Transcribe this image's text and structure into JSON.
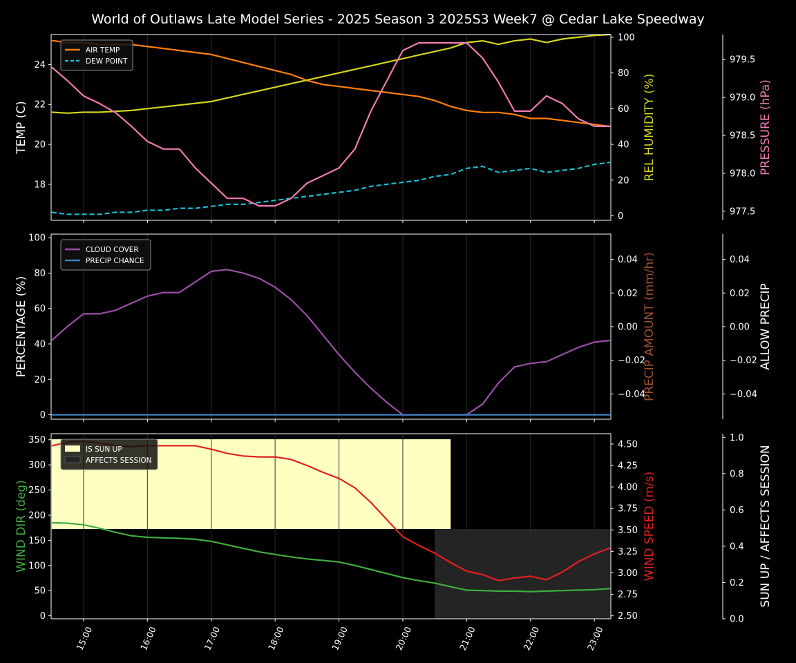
{
  "title": "World of Outlaws Late Model Series - 2025 Season 3 2025S3 Week7 @ Cedar Lake Speedway",
  "colors": {
    "background": "#000000",
    "axis": "#ffffff",
    "air_temp": "#ff7f0e",
    "dew_point": "#17becf",
    "humidity": "#d4d41c",
    "pressure": "#f07ab4",
    "cloud": "#9b4ea6",
    "precip_chance": "#3b7fc4",
    "precip_amount_label": "#a0522d",
    "wind_dir": "#3fae3f",
    "wind_speed": "#e0201e",
    "sun_up": "#ffffc2",
    "affects_session": "#242424",
    "grid": "#2a2a2a"
  },
  "chart_data": [
    {
      "type": "line",
      "panel": "top",
      "x": [
        "14:30",
        "14:45",
        "15:00",
        "15:15",
        "15:30",
        "15:45",
        "16:00",
        "16:15",
        "16:30",
        "16:45",
        "17:00",
        "17:15",
        "17:30",
        "17:45",
        "18:00",
        "18:15",
        "18:30",
        "18:45",
        "19:00",
        "19:15",
        "19:30",
        "19:45",
        "20:00",
        "20:15",
        "20:30",
        "20:45",
        "21:00",
        "21:15",
        "21:30",
        "21:45",
        "22:00",
        "22:15",
        "22:30",
        "22:45",
        "23:00",
        "23:15"
      ],
      "xticks": [
        "15:00",
        "16:00",
        "17:00",
        "18:00",
        "19:00",
        "20:00",
        "21:00",
        "22:00",
        "23:00"
      ],
      "axes": {
        "left": {
          "label": "TEMP (C)",
          "ylim": [
            16.2,
            25.5
          ],
          "ticks": [
            18,
            20,
            22,
            24
          ]
        },
        "right1": {
          "label": "REL HUMIDITY (%)",
          "ylim": [
            -2.5,
            101.5
          ],
          "ticks": [
            0,
            20,
            40,
            60,
            80,
            100
          ]
        },
        "right2": {
          "label": "PRESSURE (hPa)",
          "ylim": [
            977.38,
            979.83
          ],
          "ticks": [
            977.5,
            978.0,
            978.5,
            979.0,
            979.5
          ],
          "tick_labels": [
            "977.5",
            "978.0",
            "978.5",
            "979.0",
            "979.5"
          ]
        }
      },
      "legend": {
        "placement": "top-left",
        "entries": [
          "AIR TEMP",
          "DEW POINT"
        ]
      },
      "series": [
        {
          "name": "AIR TEMP",
          "axis": "left",
          "style": "solid",
          "values": [
            25.2,
            25.1,
            25.1,
            25.0,
            25.0,
            25.0,
            24.9,
            24.8,
            24.7,
            24.6,
            24.5,
            24.3,
            24.1,
            23.9,
            23.7,
            23.5,
            23.2,
            23.0,
            22.9,
            22.8,
            22.7,
            22.6,
            22.5,
            22.4,
            22.2,
            21.9,
            21.7,
            21.6,
            21.6,
            21.5,
            21.3,
            21.3,
            21.2,
            21.1,
            21.0,
            20.9
          ]
        },
        {
          "name": "DEW POINT",
          "axis": "left",
          "style": "dashed",
          "values": [
            16.6,
            16.5,
            16.5,
            16.5,
            16.6,
            16.6,
            16.7,
            16.7,
            16.8,
            16.8,
            16.9,
            17.0,
            17.0,
            17.1,
            17.2,
            17.3,
            17.4,
            17.5,
            17.6,
            17.7,
            17.9,
            18.0,
            18.1,
            18.2,
            18.4,
            18.5,
            18.8,
            18.9,
            18.6,
            18.7,
            18.8,
            18.6,
            18.7,
            18.8,
            19.0,
            19.1
          ]
        },
        {
          "name": "REL HUMIDITY",
          "axis": "right1",
          "style": "solid",
          "values": [
            58,
            57.5,
            58,
            58,
            58.5,
            59,
            60,
            61,
            62,
            63,
            64,
            66,
            68,
            70,
            72,
            74,
            76,
            78,
            80,
            82,
            84,
            86,
            88,
            90,
            92,
            94,
            97,
            98,
            96,
            98,
            99,
            97,
            99,
            100,
            101,
            101.5
          ]
        },
        {
          "name": "PRESSURE",
          "axis": "right2",
          "style": "solid",
          "values": [
            979.4,
            979.22,
            979.02,
            978.92,
            978.8,
            978.62,
            978.42,
            978.32,
            978.32,
            978.07,
            977.87,
            977.67,
            977.67,
            977.57,
            977.57,
            977.67,
            977.87,
            977.97,
            978.07,
            978.32,
            978.82,
            979.22,
            979.62,
            979.72,
            979.72,
            979.72,
            979.72,
            979.52,
            979.2,
            978.82,
            978.82,
            979.02,
            978.92,
            978.72,
            978.62,
            978.62
          ]
        }
      ]
    },
    {
      "type": "line",
      "panel": "middle",
      "axes": {
        "left": {
          "label": "PERCENTAGE (%)",
          "ylim": [
            -2.5,
            102
          ],
          "ticks": [
            0,
            20,
            40,
            60,
            80,
            100
          ]
        },
        "right1": {
          "label": "PRECIP AMOUNT (mm/hr)",
          "ylim": [
            -0.055,
            0.055
          ],
          "ticks": [
            -0.04,
            -0.02,
            0.0,
            0.02,
            0.04
          ],
          "tick_labels": [
            "−0.04",
            "−0.02",
            "0.00",
            "0.02",
            "0.04"
          ]
        },
        "right2": {
          "label": "ALLOW PRECIP",
          "ylim": [
            -0.055,
            0.055
          ],
          "ticks": [
            -0.04,
            -0.02,
            0.0,
            0.02,
            0.04
          ],
          "tick_labels": [
            "−0.04",
            "−0.02",
            "0.00",
            "0.02",
            "0.04"
          ]
        }
      },
      "legend": {
        "placement": "top-left",
        "entries": [
          "CLOUD COVER",
          "PRECIP CHANCE"
        ]
      },
      "series": [
        {
          "name": "CLOUD COVER",
          "axis": "left",
          "values": [
            42,
            50,
            57,
            57,
            59,
            63,
            67,
            69,
            69,
            75,
            81,
            82,
            80,
            77,
            72,
            65,
            56,
            45,
            34,
            24,
            15,
            7,
            0,
            0,
            0,
            0,
            0,
            6,
            18,
            27,
            29,
            30,
            34,
            38,
            41,
            42
          ]
        },
        {
          "name": "PRECIP CHANCE",
          "axis": "left",
          "values": [
            0,
            0,
            0,
            0,
            0,
            0,
            0,
            0,
            0,
            0,
            0,
            0,
            0,
            0,
            0,
            0,
            0,
            0,
            0,
            0,
            0,
            0,
            0,
            0,
            0,
            0,
            0,
            0,
            0,
            0,
            0,
            0,
            0,
            0,
            0,
            0
          ]
        }
      ]
    },
    {
      "type": "line",
      "panel": "bottom",
      "axes": {
        "left": {
          "label": "WIND DIR (deg)",
          "ylim": [
            -6,
            362
          ],
          "ticks": [
            0,
            50,
            100,
            150,
            200,
            250,
            300,
            350
          ]
        },
        "right1": {
          "label": "WIND SPEED (m/s)",
          "ylim": [
            2.465,
            4.62
          ],
          "ticks": [
            2.5,
            2.75,
            3.0,
            3.25,
            3.5,
            3.75,
            4.0,
            4.25,
            4.5
          ],
          "tick_labels": [
            "2.50",
            "2.75",
            "3.00",
            "3.25",
            "3.50",
            "3.75",
            "4.00",
            "4.25",
            "4.50"
          ]
        },
        "right2": {
          "label": "SUN UP / AFFECTS SESSION",
          "ylim": [
            0,
            1.02
          ],
          "ticks": [
            0,
            0.2,
            0.4,
            0.6,
            0.8,
            1.0
          ],
          "tick_labels": [
            "0.0",
            "0.2",
            "0.4",
            "0.6",
            "0.8",
            "1.0"
          ]
        }
      },
      "legend": {
        "placement": "top-left",
        "entries": [
          "IS SUN UP",
          "AFFECTS SESSION"
        ]
      },
      "bands": [
        {
          "name": "IS SUN UP",
          "from": "14:30",
          "to": "20:45",
          "y0": 0.485,
          "y1": 0.97
        },
        {
          "name": "AFFECTS SESSION",
          "from": "20:30",
          "to": "23:15",
          "y0": 0,
          "y1": 0.485
        }
      ],
      "series": [
        {
          "name": "WIND DIR",
          "axis": "left",
          "values": [
            185,
            184,
            181,
            174,
            166,
            159,
            156,
            155,
            154,
            152,
            148,
            141,
            134,
            127,
            122,
            117,
            113,
            110,
            107,
            100,
            92,
            84,
            76,
            70,
            65,
            58,
            51,
            50,
            49,
            49,
            48,
            49,
            50,
            51,
            52,
            54
          ]
        },
        {
          "name": "WIND SPEED",
          "axis": "right1",
          "values": [
            4.48,
            4.52,
            4.53,
            4.51,
            4.48,
            4.47,
            4.48,
            4.48,
            4.48,
            4.48,
            4.44,
            4.39,
            4.36,
            4.35,
            4.35,
            4.32,
            4.25,
            4.17,
            4.1,
            3.99,
            3.82,
            3.62,
            3.42,
            3.32,
            3.23,
            3.12,
            3.02,
            2.98,
            2.91,
            2.94,
            2.96,
            2.92,
            3.01,
            3.13,
            3.22,
            3.29
          ]
        }
      ]
    }
  ]
}
